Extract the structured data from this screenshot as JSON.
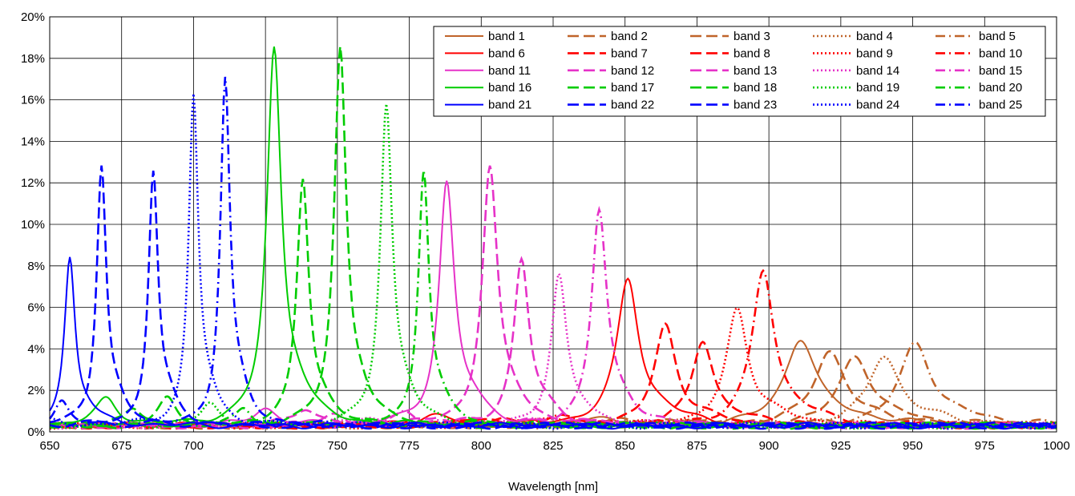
{
  "chart_data": {
    "type": "line",
    "title": "",
    "xlabel": "Wavelength [nm]",
    "ylabel": "",
    "xlim": [
      650,
      1000
    ],
    "ylim": [
      0,
      0.2
    ],
    "x_ticks": [
      "650",
      "675",
      "700",
      "725",
      "750",
      "775",
      "800",
      "825",
      "850",
      "875",
      "900",
      "925",
      "950",
      "975",
      "1000"
    ],
    "y_ticks": [
      "0%",
      "2%",
      "4%",
      "6%",
      "8%",
      "10%",
      "12%",
      "14%",
      "16%",
      "18%",
      "20%"
    ],
    "grid": true,
    "legend_position": "top-right",
    "series": [
      {
        "name": "band 1",
        "color": "#C0642A",
        "style": "solid",
        "peak_x": 911,
        "peak_y": 0.041,
        "width": 6.5,
        "base": 0.003
      },
      {
        "name": "band 2",
        "color": "#C0642A",
        "style": "dash",
        "peak_x": 921,
        "peak_y": 0.035,
        "width": 6.5,
        "base": 0.003
      },
      {
        "name": "band 3",
        "color": "#C0642A",
        "style": "dash",
        "peak_x": 930,
        "peak_y": 0.033,
        "width": 6.5,
        "base": 0.003
      },
      {
        "name": "band 4",
        "color": "#C0642A",
        "style": "dot",
        "peak_x": 940,
        "peak_y": 0.033,
        "width": 6.5,
        "base": 0.003
      },
      {
        "name": "band 5",
        "color": "#C0642A",
        "style": "dashdot",
        "peak_x": 951,
        "peak_y": 0.039,
        "width": 6.5,
        "base": 0.003
      },
      {
        "name": "band 6",
        "color": "#FF0000",
        "style": "solid",
        "peak_x": 851,
        "peak_y": 0.069,
        "width": 4.5,
        "base": 0.003
      },
      {
        "name": "band 7",
        "color": "#FF0000",
        "style": "dash",
        "peak_x": 864,
        "peak_y": 0.047,
        "width": 4.5,
        "base": 0.003
      },
      {
        "name": "band 8",
        "color": "#FF0000",
        "style": "dash",
        "peak_x": 877,
        "peak_y": 0.04,
        "width": 4.5,
        "base": 0.003
      },
      {
        "name": "band 9",
        "color": "#FF0000",
        "style": "dot",
        "peak_x": 889,
        "peak_y": 0.055,
        "width": 4.5,
        "base": 0.003
      },
      {
        "name": "band 10",
        "color": "#FF0000",
        "style": "dashdot",
        "peak_x": 898,
        "peak_y": 0.073,
        "width": 4.5,
        "base": 0.003
      },
      {
        "name": "band 11",
        "color": "#E632C8",
        "style": "solid",
        "peak_x": 788,
        "peak_y": 0.114,
        "width": 3.2,
        "base": 0.003
      },
      {
        "name": "band 12",
        "color": "#E632C8",
        "style": "dash",
        "peak_x": 803,
        "peak_y": 0.121,
        "width": 3.2,
        "base": 0.003
      },
      {
        "name": "band 13",
        "color": "#E632C8",
        "style": "dash",
        "peak_x": 814,
        "peak_y": 0.078,
        "width": 3.2,
        "base": 0.003
      },
      {
        "name": "band 14",
        "color": "#E632C8",
        "style": "dot",
        "peak_x": 827,
        "peak_y": 0.07,
        "width": 3.2,
        "base": 0.003
      },
      {
        "name": "band 15",
        "color": "#E632C8",
        "style": "dashdot",
        "peak_x": 841,
        "peak_y": 0.101,
        "width": 3.2,
        "base": 0.003
      },
      {
        "name": "band 16",
        "color": "#00CC00",
        "style": "solid",
        "peak_x": 728,
        "peak_y": 0.177,
        "width": 3.0,
        "base": 0.003
      },
      {
        "name": "band 17",
        "color": "#00CC00",
        "style": "dash",
        "peak_x": 738,
        "peak_y": 0.116,
        "width": 2.5,
        "base": 0.003
      },
      {
        "name": "band 18",
        "color": "#00CC00",
        "style": "dash",
        "peak_x": 751,
        "peak_y": 0.177,
        "width": 2.5,
        "base": 0.003
      },
      {
        "name": "band 19",
        "color": "#00CC00",
        "style": "dot",
        "peak_x": 767,
        "peak_y": 0.151,
        "width": 2.5,
        "base": 0.003
      },
      {
        "name": "band 20",
        "color": "#00CC00",
        "style": "dashdot",
        "peak_x": 780,
        "peak_y": 0.121,
        "width": 2.2,
        "base": 0.003
      },
      {
        "name": "band 21",
        "color": "#0000FF",
        "style": "solid",
        "peak_x": 657,
        "peak_y": 0.079,
        "width": 2.2,
        "base": 0.003
      },
      {
        "name": "band 22",
        "color": "#0000FF",
        "style": "dash",
        "peak_x": 668,
        "peak_y": 0.123,
        "width": 2.0,
        "base": 0.003
      },
      {
        "name": "band 23",
        "color": "#0000FF",
        "style": "dash",
        "peak_x": 686,
        "peak_y": 0.12,
        "width": 2.0,
        "base": 0.003
      },
      {
        "name": "band 24",
        "color": "#0000FF",
        "style": "dot",
        "peak_x": 700,
        "peak_y": 0.155,
        "width": 2.0,
        "base": 0.003
      },
      {
        "name": "band 25",
        "color": "#0000FF",
        "style": "dashdot",
        "peak_x": 711,
        "peak_y": 0.163,
        "width": 2.0,
        "base": 0.003
      }
    ]
  }
}
